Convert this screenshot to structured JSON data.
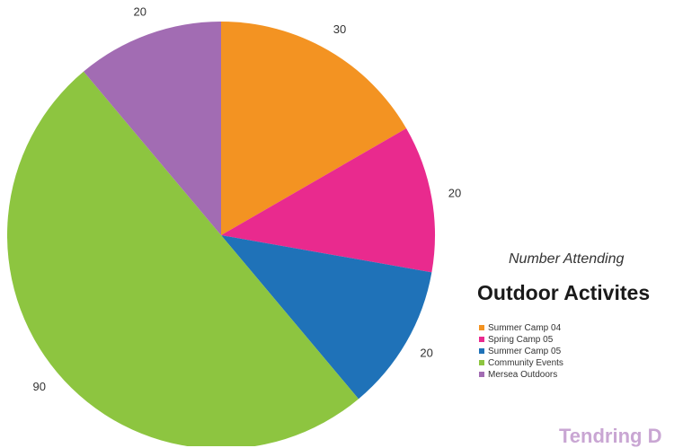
{
  "chart_data": {
    "type": "pie",
    "title": "Outdoor Activites",
    "subtitle": "Number Attending",
    "categories": [
      "Summer Camp 04",
      "Spring Camp 05",
      "Summer Camp 05",
      "Community Events",
      "Mersea Outdoors"
    ],
    "values": [
      30,
      20,
      20,
      90,
      20
    ],
    "colors": [
      "#f39322",
      "#e92a8e",
      "#1f72b8",
      "#8dc540",
      "#a26cb3"
    ],
    "legend_position": "right"
  },
  "footer": {
    "text": "Tendring D"
  }
}
